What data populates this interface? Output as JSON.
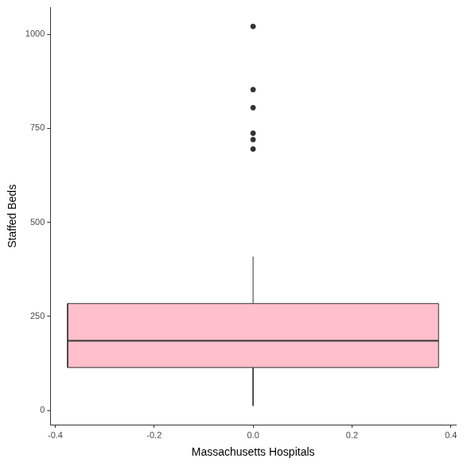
{
  "chart_data": {
    "type": "box",
    "x_label": "Massachusetts Hospitals",
    "y_label": "Staffed Beds",
    "whisker_low": 12,
    "q1": 114,
    "median": 185,
    "q3": 284,
    "whisker_high": 409,
    "outliers": [
      695,
      720,
      737,
      805,
      853,
      1021
    ],
    "color": "#ffc0cb",
    "xlim": [
      -0.41,
      0.41
    ],
    "xticks": [
      -0.4,
      -0.2,
      {
        "value": 0,
        "label": "0.0"
      },
      0.2,
      0.4
    ],
    "ylim": [
      -38,
      1071
    ],
    "yticks": [
      0,
      250,
      500,
      750,
      1000
    ],
    "grid": false
  }
}
